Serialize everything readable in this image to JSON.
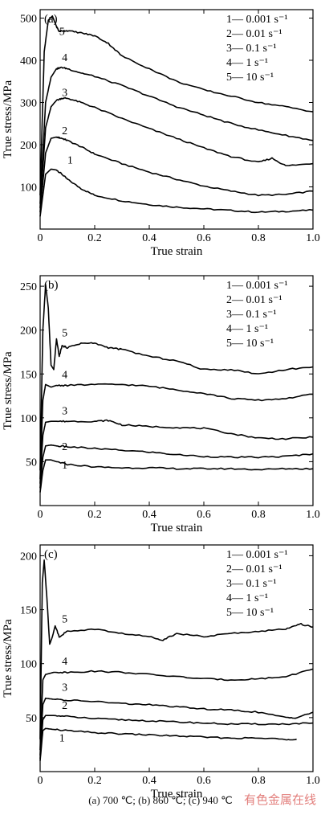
{
  "caption": "(a) 700 ℃; (b) 860 ℃; (c) 940 ℃",
  "watermark": "有色金属在线",
  "chart_data": [
    {
      "type": "line",
      "panel_label": "(a)",
      "xlabel": "True strain",
      "ylabel": "True stress/MPa",
      "xlim": [
        0,
        1.0
      ],
      "ylim": [
        0,
        520
      ],
      "xticks": [
        0,
        0.2,
        0.4,
        0.6,
        0.8,
        1.0
      ],
      "xtick_labels": [
        "0",
        "0.2",
        "0.4",
        "0.6",
        "0.8",
        "1.0"
      ],
      "yticks": [
        100,
        200,
        300,
        400,
        500
      ],
      "ytick_labels": [
        "100",
        "200",
        "300",
        "400",
        "500"
      ],
      "legend": [
        "1— 0.001 s⁻¹",
        "2— 0.01 s⁻¹",
        "3— 0.1 s⁻¹",
        "4— 1 s⁻¹",
        "5— 10 s⁻¹"
      ],
      "series": [
        {
          "name": "1",
          "label_at": [
            0.11,
            155
          ],
          "x": [
            0,
            0.02,
            0.04,
            0.06,
            0.08,
            0.1,
            0.15,
            0.2,
            0.3,
            0.4,
            0.5,
            0.6,
            0.7,
            0.8,
            0.9,
            1.0
          ],
          "y": [
            30,
            130,
            142,
            140,
            130,
            118,
            96,
            80,
            67,
            58,
            52,
            48,
            44,
            40,
            42,
            45
          ]
        },
        {
          "name": "2",
          "label_at": [
            0.09,
            225
          ],
          "x": [
            0,
            0.02,
            0.04,
            0.06,
            0.08,
            0.1,
            0.15,
            0.2,
            0.3,
            0.4,
            0.5,
            0.6,
            0.7,
            0.8,
            0.9,
            1.0
          ],
          "y": [
            40,
            180,
            215,
            218,
            215,
            210,
            195,
            178,
            155,
            135,
            118,
            102,
            90,
            80,
            82,
            90
          ]
        },
        {
          "name": "3",
          "label_at": [
            0.09,
            315
          ],
          "x": [
            0,
            0.02,
            0.04,
            0.06,
            0.08,
            0.1,
            0.15,
            0.2,
            0.3,
            0.4,
            0.5,
            0.6,
            0.7,
            0.8,
            0.85,
            0.9,
            1.0
          ],
          "y": [
            50,
            240,
            290,
            305,
            310,
            310,
            300,
            288,
            262,
            238,
            215,
            192,
            172,
            158,
            168,
            150,
            155
          ]
        },
        {
          "name": "4",
          "label_at": [
            0.09,
            398
          ],
          "x": [
            0,
            0.02,
            0.04,
            0.06,
            0.08,
            0.1,
            0.15,
            0.2,
            0.3,
            0.4,
            0.5,
            0.6,
            0.7,
            0.8,
            0.9,
            1.0
          ],
          "y": [
            60,
            300,
            360,
            380,
            383,
            380,
            370,
            362,
            340,
            315,
            290,
            270,
            250,
            235,
            222,
            210
          ]
        },
        {
          "name": "5",
          "label_at": [
            0.08,
            460
          ],
          "x": [
            0,
            0.015,
            0.03,
            0.045,
            0.06,
            0.07,
            0.08,
            0.1,
            0.15,
            0.2,
            0.25,
            0.3,
            0.4,
            0.5,
            0.6,
            0.7,
            0.8,
            0.9,
            1.0
          ],
          "y": [
            80,
            420,
            495,
            505,
            480,
            468,
            470,
            470,
            465,
            458,
            440,
            410,
            380,
            350,
            330,
            315,
            300,
            290,
            278
          ]
        }
      ]
    },
    {
      "type": "line",
      "panel_label": "(b)",
      "xlabel": "True strain",
      "ylabel": "True stress/MPa",
      "xlim": [
        0,
        1.0
      ],
      "ylim": [
        0,
        262
      ],
      "xticks": [
        0,
        0.2,
        0.4,
        0.6,
        0.8,
        1.0
      ],
      "xtick_labels": [
        "0",
        "0.2",
        "0.4",
        "0.6",
        "0.8",
        "1.0"
      ],
      "yticks": [
        50,
        100,
        150,
        200,
        250
      ],
      "ytick_labels": [
        "50",
        "100",
        "150",
        "200",
        "250"
      ],
      "legend": [
        "1— 0.001 s⁻¹",
        "2— 0.01 s⁻¹",
        "3— 0.1 s⁻¹",
        "4— 1 s⁻¹",
        "5— 10 s⁻¹"
      ],
      "series": [
        {
          "name": "1",
          "label_at": [
            0.09,
            42
          ],
          "x": [
            0,
            0.01,
            0.02,
            0.04,
            0.06,
            0.1,
            0.2,
            0.3,
            0.4,
            0.5,
            0.6,
            0.7,
            0.8,
            0.9,
            1.0
          ],
          "y": [
            15,
            40,
            52,
            52,
            50,
            47,
            44,
            43,
            43,
            42,
            42,
            42,
            41,
            42,
            42
          ]
        },
        {
          "name": "2",
          "label_at": [
            0.09,
            63
          ],
          "x": [
            0,
            0.01,
            0.02,
            0.04,
            0.06,
            0.1,
            0.2,
            0.3,
            0.4,
            0.5,
            0.6,
            0.7,
            0.8,
            0.9,
            1.0
          ],
          "y": [
            20,
            55,
            68,
            69,
            68,
            67,
            65,
            63,
            61,
            58,
            56,
            55,
            55,
            56,
            59
          ]
        },
        {
          "name": "3",
          "label_at": [
            0.09,
            104
          ],
          "x": [
            0,
            0.01,
            0.02,
            0.04,
            0.06,
            0.1,
            0.2,
            0.25,
            0.3,
            0.4,
            0.5,
            0.6,
            0.7,
            0.8,
            0.9,
            1.0
          ],
          "y": [
            25,
            80,
            95,
            96,
            96,
            96,
            96,
            97,
            92,
            90,
            89,
            88,
            82,
            77,
            76,
            78
          ]
        },
        {
          "name": "4",
          "label_at": [
            0.09,
            145
          ],
          "x": [
            0,
            0.01,
            0.02,
            0.04,
            0.06,
            0.1,
            0.2,
            0.3,
            0.4,
            0.5,
            0.6,
            0.7,
            0.8,
            0.9,
            1.0
          ],
          "y": [
            30,
            120,
            138,
            135,
            137,
            137,
            138,
            138,
            136,
            132,
            128,
            122,
            120,
            122,
            127
          ]
        },
        {
          "name": "5",
          "label_at": [
            0.09,
            193
          ],
          "x": [
            0,
            0.01,
            0.02,
            0.03,
            0.04,
            0.05,
            0.06,
            0.07,
            0.08,
            0.1,
            0.15,
            0.2,
            0.25,
            0.3,
            0.4,
            0.5,
            0.6,
            0.7,
            0.8,
            0.9,
            1.0
          ],
          "y": [
            40,
            200,
            252,
            225,
            160,
            155,
            190,
            170,
            182,
            180,
            185,
            185,
            180,
            178,
            170,
            165,
            155,
            155,
            150,
            155,
            158
          ]
        }
      ]
    },
    {
      "type": "line",
      "panel_label": "(c)",
      "xlabel": "True strain",
      "ylabel": "True stress/MPa",
      "xlim": [
        0,
        1.0
      ],
      "ylim": [
        0,
        210
      ],
      "xticks": [
        0,
        0.2,
        0.4,
        0.6,
        0.8,
        1.0
      ],
      "xtick_labels": [
        "0",
        "0.2",
        "0.4",
        "0.6",
        "0.8",
        "1.0"
      ],
      "yticks": [
        50,
        100,
        150,
        200
      ],
      "ytick_labels": [
        "50",
        "100",
        "150",
        "200"
      ],
      "legend": [
        "1— 0.001 s⁻¹",
        "2— 0.01 s⁻¹",
        "3— 0.1 s⁻¹",
        "4— 1 s⁻¹",
        "5— 10 s⁻¹"
      ],
      "series": [
        {
          "name": "1",
          "label_at": [
            0.08,
            28
          ],
          "x": [
            0,
            0.01,
            0.02,
            0.05,
            0.1,
            0.2,
            0.3,
            0.4,
            0.5,
            0.6,
            0.7,
            0.8,
            0.9,
            0.94
          ],
          "y": [
            10,
            38,
            40,
            39,
            38,
            36,
            35,
            34,
            33,
            32,
            31,
            31,
            30,
            30
          ]
        },
        {
          "name": "2",
          "label_at": [
            0.09,
            58
          ],
          "x": [
            0,
            0.01,
            0.02,
            0.05,
            0.1,
            0.2,
            0.3,
            0.4,
            0.5,
            0.6,
            0.7,
            0.8,
            0.9,
            1.0
          ],
          "y": [
            12,
            48,
            52,
            52,
            51,
            49,
            48,
            47,
            46,
            45,
            44,
            44,
            44,
            45
          ]
        },
        {
          "name": "3",
          "label_at": [
            0.09,
            75
          ],
          "x": [
            0,
            0.01,
            0.02,
            0.05,
            0.1,
            0.2,
            0.3,
            0.4,
            0.5,
            0.6,
            0.7,
            0.8,
            0.9,
            0.94,
            1.0
          ],
          "y": [
            15,
            62,
            68,
            67,
            66,
            65,
            63,
            62,
            60,
            58,
            57,
            55,
            50,
            50,
            55
          ]
        },
        {
          "name": "4",
          "label_at": [
            0.09,
            99
          ],
          "x": [
            0,
            0.01,
            0.02,
            0.05,
            0.1,
            0.2,
            0.3,
            0.4,
            0.5,
            0.6,
            0.7,
            0.8,
            0.9,
            1.0
          ],
          "y": [
            20,
            85,
            90,
            92,
            92,
            93,
            92,
            90,
            88,
            86,
            85,
            86,
            88,
            95
          ]
        },
        {
          "name": "5",
          "label_at": [
            0.09,
            138
          ],
          "x": [
            0,
            0.008,
            0.015,
            0.025,
            0.035,
            0.045,
            0.055,
            0.07,
            0.1,
            0.2,
            0.3,
            0.4,
            0.45,
            0.5,
            0.6,
            0.7,
            0.8,
            0.9,
            0.95,
            1.0
          ],
          "y": [
            30,
            175,
            196,
            160,
            118,
            125,
            135,
            125,
            130,
            132,
            128,
            125,
            122,
            128,
            125,
            128,
            130,
            132,
            137,
            134
          ]
        }
      ]
    }
  ]
}
